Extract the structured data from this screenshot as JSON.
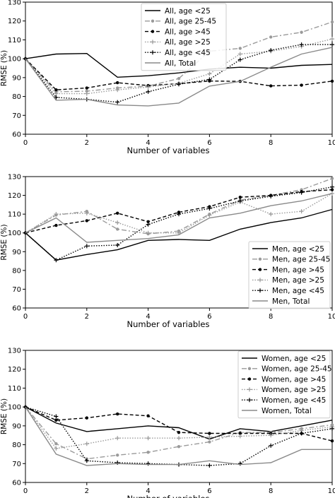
{
  "chart_data": [
    {
      "type": "line",
      "xlabel": "Number of variables",
      "ylabel": "RMSE (%)",
      "xlim": [
        0,
        10
      ],
      "ylim": [
        60,
        130
      ],
      "xticks": [
        "0",
        "2",
        "4",
        "6",
        "8",
        "10"
      ],
      "yticks": [
        "60",
        "70",
        "80",
        "90",
        "100",
        "110",
        "120",
        "130"
      ],
      "legend_position": "top-left",
      "x": [
        0,
        1,
        2,
        3,
        4,
        5,
        6,
        7,
        8,
        9,
        10
      ],
      "series": [
        {
          "name": "All, age <25",
          "style": "solid",
          "color": "#000000",
          "marker": "none",
          "values": [
            100,
            102.5,
            102.8,
            90.2,
            91,
            92.5,
            94.5,
            95.5,
            95,
            96.5,
            97
          ]
        },
        {
          "name": "All, age 25-45",
          "style": "dashdot",
          "color": "#9a9a9a",
          "marker": "dot",
          "values": [
            100,
            82.5,
            82.8,
            84.5,
            85.5,
            89.5,
            104,
            105.5,
            111.5,
            114,
            119.5
          ]
        },
        {
          "name": "All, age >45",
          "style": "dashed",
          "color": "#000000",
          "marker": "dot",
          "values": [
            100,
            83.5,
            84.5,
            87.3,
            85.8,
            86.8,
            88.2,
            88,
            85.6,
            86,
            88.1
          ]
        },
        {
          "name": "All, age >25",
          "style": "dotted",
          "color": "#9a9a9a",
          "marker": "plus",
          "values": [
            100,
            81.5,
            81.5,
            83.5,
            85,
            87,
            92,
            102.5,
            104,
            106.5,
            110.5
          ]
        },
        {
          "name": "All, age <45",
          "style": "dotted",
          "color": "#000000",
          "marker": "plus",
          "values": [
            100,
            79.5,
            78.5,
            77,
            82.5,
            86.5,
            89,
            99.5,
            104.5,
            107.5,
            107.5
          ]
        },
        {
          "name": "All, Total",
          "style": "solid",
          "color": "#8a8a8a",
          "marker": "none",
          "values": [
            100,
            78,
            78.5,
            75.5,
            75,
            76.5,
            85.5,
            88,
            95.5,
            102.5,
            106
          ]
        }
      ]
    },
    {
      "type": "line",
      "xlabel": "Number of variables",
      "ylabel": "RMSE (%)",
      "xlim": [
        0,
        10
      ],
      "ylim": [
        60,
        130
      ],
      "xticks": [
        "0",
        "2",
        "4",
        "6",
        "8",
        "10"
      ],
      "yticks": [
        "60",
        "70",
        "80",
        "90",
        "100",
        "110",
        "120",
        "130"
      ],
      "legend_position": "bottom-right",
      "x": [
        0,
        1,
        2,
        3,
        4,
        5,
        6,
        7,
        8,
        9,
        10
      ],
      "series": [
        {
          "name": "Men, age <25",
          "style": "solid",
          "color": "#000000",
          "marker": "none",
          "values": [
            100,
            85.5,
            88.5,
            91,
            96,
            96.5,
            96,
            102,
            105.5,
            108,
            112.5
          ]
        },
        {
          "name": "Men, age 25-45",
          "style": "dashdot",
          "color": "#9a9a9a",
          "marker": "dot",
          "values": [
            100,
            109.5,
            111.5,
            102,
            99.5,
            101,
            110,
            117.5,
            120,
            123,
            129
          ]
        },
        {
          "name": "Men, age >45",
          "style": "dashed",
          "color": "#000000",
          "marker": "dot",
          "values": [
            100,
            104,
            106.5,
            110.5,
            106,
            111,
            114,
            119,
            120,
            122,
            123
          ]
        },
        {
          "name": "Men, age >25",
          "style": "dotted",
          "color": "#9a9a9a",
          "marker": "plus",
          "values": [
            100,
            110,
            110.5,
            105.5,
            100,
            100,
            109.5,
            116.5,
            110,
            111.5,
            121
          ]
        },
        {
          "name": "Men, age <45",
          "style": "dotted",
          "color": "#000000",
          "marker": "plus",
          "values": [
            100,
            85.5,
            93,
            93.5,
            104.5,
            110,
            113,
            117,
            119.5,
            121.5,
            124.5
          ]
        },
        {
          "name": "Men, Total",
          "style": "solid",
          "color": "#8a8a8a",
          "marker": "none",
          "values": [
            100,
            108,
            95,
            96,
            97,
            99,
            108,
            110.5,
            114.5,
            117,
            121
          ]
        }
      ]
    },
    {
      "type": "line",
      "xlabel": "Number of variables",
      "ylabel": "RMSE (%)",
      "xlim": [
        0,
        10
      ],
      "ylim": [
        60,
        130
      ],
      "xticks": [
        "0",
        "2",
        "4",
        "6",
        "8",
        "10"
      ],
      "yticks": [
        "60",
        "70",
        "80",
        "90",
        "100",
        "110",
        "120",
        "130"
      ],
      "legend_position": "top-right",
      "x": [
        0,
        1,
        2,
        3,
        4,
        5,
        6,
        7,
        8,
        9,
        10
      ],
      "series": [
        {
          "name": "Women, age <25",
          "style": "solid",
          "color": "#000000",
          "marker": "none",
          "values": [
            100,
            91.5,
            87,
            88.5,
            90,
            89,
            83,
            88.5,
            87,
            90,
            93
          ]
        },
        {
          "name": "Women, age 25-45",
          "style": "dashdot",
          "color": "#9a9a9a",
          "marker": "dot",
          "values": [
            100,
            80.5,
            72.5,
            74.5,
            76,
            79,
            81.5,
            86.5,
            86.5,
            88.5,
            90.5
          ]
        },
        {
          "name": "Women, age >45",
          "style": "dashed",
          "color": "#000000",
          "marker": "dot",
          "values": [
            100,
            93,
            94.2,
            96.3,
            95.3,
            86.5,
            86,
            86,
            86,
            86,
            82
          ]
        },
        {
          "name": "Women, age >25",
          "style": "dotted",
          "color": "#9a9a9a",
          "marker": "plus",
          "values": [
            100,
            78,
            80.5,
            83.5,
            83.5,
            83.5,
            84,
            84.5,
            85,
            87.5,
            89.5
          ]
        },
        {
          "name": "Women, age <45",
          "style": "dotted",
          "color": "#000000",
          "marker": "plus",
          "values": [
            100,
            95,
            71.5,
            70.5,
            70,
            69.5,
            69,
            70,
            79.5,
            86,
            88.5
          ]
        },
        {
          "name": "Women, Total",
          "style": "solid",
          "color": "#8a8a8a",
          "marker": "none",
          "values": [
            100,
            75,
            69,
            70,
            69.5,
            69.5,
            71.5,
            69.5,
            70.5,
            77.5,
            77.5
          ]
        }
      ]
    }
  ]
}
